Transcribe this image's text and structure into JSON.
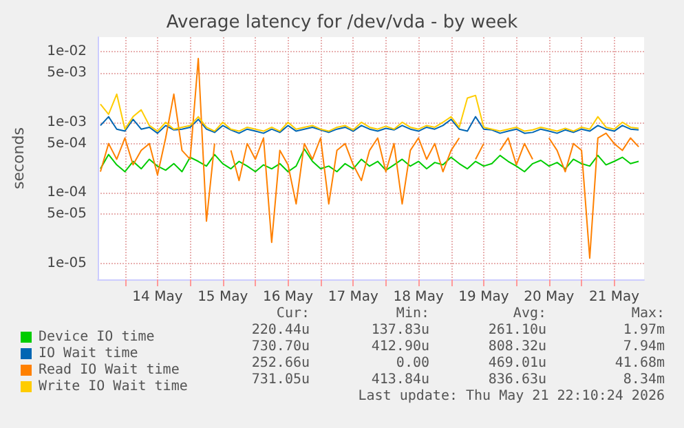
{
  "chart_data": {
    "type": "line",
    "title": "Average latency for /dev/vda - by week",
    "ylabel": "seconds",
    "log": "y",
    "grid": true,
    "legend": "bottom left",
    "marker": "none",
    "line_style": "solid",
    "xlim": [
      "2026-05-13T14:00",
      "2026-05-21T23:00"
    ],
    "xticks": [
      {
        "value": "2026-05-14T00:00",
        "label": null
      },
      {
        "value": "2026-05-14T12:00",
        "label": "14 May"
      },
      {
        "value": "2026-05-15T00:00",
        "label": null
      },
      {
        "value": "2026-05-15T12:00",
        "label": "15 May"
      },
      {
        "value": "2026-05-16T00:00",
        "label": null
      },
      {
        "value": "2026-05-16T12:00",
        "label": "16 May"
      },
      {
        "value": "2026-05-17T00:00",
        "label": null
      },
      {
        "value": "2026-05-17T12:00",
        "label": "17 May"
      },
      {
        "value": "2026-05-18T00:00",
        "label": null
      },
      {
        "value": "2026-05-18T12:00",
        "label": "18 May"
      },
      {
        "value": "2026-05-19T00:00",
        "label": null
      },
      {
        "value": "2026-05-19T12:00",
        "label": "19 May"
      },
      {
        "value": "2026-05-20T00:00",
        "label": null
      },
      {
        "value": "2026-05-20T12:00",
        "label": "20 May"
      },
      {
        "value": "2026-05-21T00:00",
        "label": null
      },
      {
        "value": "2026-05-21T12:00",
        "label": "21 May"
      }
    ],
    "ylim": [
      6e-06,
      0.016
    ],
    "yticks": [
      {
        "value": 1e-05,
        "label": "1e-05"
      },
      {
        "value": 5e-05,
        "label": "5e-05"
      },
      {
        "value": 0.0001,
        "label": "1e-04"
      },
      {
        "value": 0.0005,
        "label": "5e-04"
      },
      {
        "value": 0.001,
        "label": "1e-03"
      },
      {
        "value": 0.005,
        "label": "5e-03"
      },
      {
        "value": 0.01,
        "label": "1e-02"
      }
    ],
    "x": [
      "2026-05-13T15:00",
      "2026-05-13T18:00",
      "2026-05-13T21:00",
      "2026-05-14T00:00",
      "2026-05-14T03:00",
      "2026-05-14T06:00",
      "2026-05-14T09:00",
      "2026-05-14T12:00",
      "2026-05-14T15:00",
      "2026-05-14T18:00",
      "2026-05-14T21:00",
      "2026-05-15T00:00",
      "2026-05-15T03:00",
      "2026-05-15T06:00",
      "2026-05-15T09:00",
      "2026-05-15T12:00",
      "2026-05-15T15:00",
      "2026-05-15T18:00",
      "2026-05-15T21:00",
      "2026-05-16T00:00",
      "2026-05-16T03:00",
      "2026-05-16T06:00",
      "2026-05-16T09:00",
      "2026-05-16T12:00",
      "2026-05-16T15:00",
      "2026-05-16T18:00",
      "2026-05-16T21:00",
      "2026-05-17T00:00",
      "2026-05-17T03:00",
      "2026-05-17T06:00",
      "2026-05-17T09:00",
      "2026-05-17T12:00",
      "2026-05-17T15:00",
      "2026-05-17T18:00",
      "2026-05-17T21:00",
      "2026-05-18T00:00",
      "2026-05-18T03:00",
      "2026-05-18T06:00",
      "2026-05-18T09:00",
      "2026-05-18T12:00",
      "2026-05-18T15:00",
      "2026-05-18T18:00",
      "2026-05-18T21:00",
      "2026-05-19T00:00",
      "2026-05-19T03:00",
      "2026-05-19T06:00",
      "2026-05-19T09:00",
      "2026-05-19T12:00",
      "2026-05-19T15:00",
      "2026-05-19T18:00",
      "2026-05-19T21:00",
      "2026-05-20T00:00",
      "2026-05-20T03:00",
      "2026-05-20T06:00",
      "2026-05-20T09:00",
      "2026-05-20T12:00",
      "2026-05-20T15:00",
      "2026-05-20T18:00",
      "2026-05-20T21:00",
      "2026-05-21T00:00",
      "2026-05-21T03:00",
      "2026-05-21T06:00",
      "2026-05-21T09:00",
      "2026-05-21T12:00",
      "2026-05-21T15:00",
      "2026-05-21T18:00",
      "2026-05-21T21:00"
    ],
    "series": [
      {
        "name": "Device IO time",
        "color": "#00cc00",
        "values": [
          0.00022,
          0.00035,
          0.00025,
          0.0002,
          0.00028,
          0.00022,
          0.0003,
          0.00024,
          0.00021,
          0.00026,
          0.0002,
          0.00032,
          0.00028,
          0.00024,
          0.00035,
          0.00026,
          0.00022,
          0.00028,
          0.00024,
          0.0002,
          0.00025,
          0.00022,
          0.00026,
          0.0002,
          0.00024,
          0.00042,
          0.00028,
          0.00022,
          0.00024,
          0.0002,
          0.00026,
          0.00022,
          0.0003,
          0.00024,
          0.00028,
          0.00021,
          0.00025,
          0.0003,
          0.00024,
          0.00028,
          0.00022,
          0.00027,
          0.00025,
          0.00032,
          0.00026,
          0.00022,
          0.00028,
          0.00024,
          0.00026,
          0.00034,
          0.00028,
          0.00024,
          0.0002,
          0.00026,
          0.00029,
          0.00024,
          0.00027,
          0.00022,
          0.0003,
          0.00026,
          0.00024,
          0.00034,
          0.00025,
          0.00028,
          0.00032,
          0.00026,
          0.00028
        ]
      },
      {
        "name": "IO Wait time",
        "color": "#0066b3",
        "values": [
          0.0009,
          0.0012,
          0.0008,
          0.00075,
          0.0011,
          0.0008,
          0.00085,
          0.0007,
          0.0009,
          0.00078,
          0.0008,
          0.00085,
          0.0011,
          0.0008,
          0.00072,
          0.0009,
          0.00078,
          0.0007,
          0.0008,
          0.00075,
          0.0007,
          0.0008,
          0.00072,
          0.0009,
          0.00075,
          0.0008,
          0.00085,
          0.00078,
          0.00072,
          0.0008,
          0.00085,
          0.00075,
          0.0009,
          0.0008,
          0.00075,
          0.00082,
          0.00078,
          0.0009,
          0.0008,
          0.00075,
          0.00085,
          0.0008,
          0.0009,
          0.0011,
          0.0008,
          0.00075,
          0.0012,
          0.0008,
          0.00078,
          0.0007,
          0.00075,
          0.0008,
          0.0007,
          0.00072,
          0.0008,
          0.00075,
          0.0007,
          0.00078,
          0.00072,
          0.0008,
          0.00075,
          0.0009,
          0.0008,
          0.00075,
          0.0009,
          0.0008,
          0.00078
        ]
      },
      {
        "name": "Read IO Wait time",
        "color": "#ff8000",
        "values": [
          0.0002,
          0.0005,
          0.0003,
          0.0006,
          0.00025,
          0.0004,
          0.0005,
          0.00018,
          0.0006,
          0.0025,
          0.0004,
          0.0003,
          0.008,
          4e-05,
          0.0005,
          null,
          0.0004,
          0.00015,
          0.0005,
          0.0003,
          0.0006,
          2e-05,
          0.0004,
          0.00025,
          7e-05,
          0.0005,
          0.0003,
          0.0006,
          7e-05,
          0.0004,
          0.0005,
          0.00025,
          0.00015,
          0.0004,
          0.0006,
          0.0002,
          0.0005,
          7e-05,
          0.0004,
          0.0006,
          0.0003,
          0.0005,
          0.0002,
          0.0004,
          0.0006,
          null,
          0.0003,
          0.0005,
          null,
          0.0004,
          0.0006,
          0.00025,
          0.0005,
          0.0003,
          null,
          0.0006,
          0.0004,
          0.0002,
          0.0005,
          0.0004,
          1.2e-05,
          0.0006,
          0.0007,
          0.0005,
          0.0004,
          0.0006,
          0.00045
        ]
      },
      {
        "name": "Write IO Wait time",
        "color": "#ffcc00",
        "values": [
          0.0018,
          0.0013,
          0.0025,
          0.0008,
          0.0012,
          0.0015,
          0.0009,
          0.00075,
          0.001,
          0.0008,
          0.00085,
          0.0009,
          0.0012,
          0.00085,
          0.00075,
          0.001,
          0.0008,
          0.00075,
          0.00085,
          0.0008,
          0.00075,
          0.00085,
          0.00075,
          0.001,
          0.0008,
          0.00085,
          0.0009,
          0.0008,
          0.00075,
          0.00085,
          0.0009,
          0.00078,
          0.001,
          0.00085,
          0.0008,
          0.00088,
          0.0008,
          0.001,
          0.00085,
          0.0008,
          0.0009,
          0.00085,
          0.001,
          0.0012,
          0.00085,
          0.0022,
          0.0024,
          0.00085,
          0.0008,
          0.00075,
          0.0008,
          0.00085,
          0.00075,
          0.00078,
          0.00085,
          0.0008,
          0.00075,
          0.00082,
          0.00075,
          0.00085,
          0.0008,
          0.0012,
          0.00085,
          0.0008,
          0.001,
          0.00085,
          0.00082
        ]
      }
    ],
    "annotations": [
      "Cur:",
      "Min:",
      "Avg:",
      "Max:",
      "220.44u",
      "137.83u",
      "261.10u",
      "1.97m",
      "730.70u",
      "412.90u",
      "808.32u",
      "7.94m",
      "252.66u",
      "0.00",
      "469.01u",
      "41.68m",
      "731.05u",
      "413.84u",
      "836.63u",
      "8.34m",
      "Last update: Thu May 21 22:10:24 2026"
    ]
  }
}
